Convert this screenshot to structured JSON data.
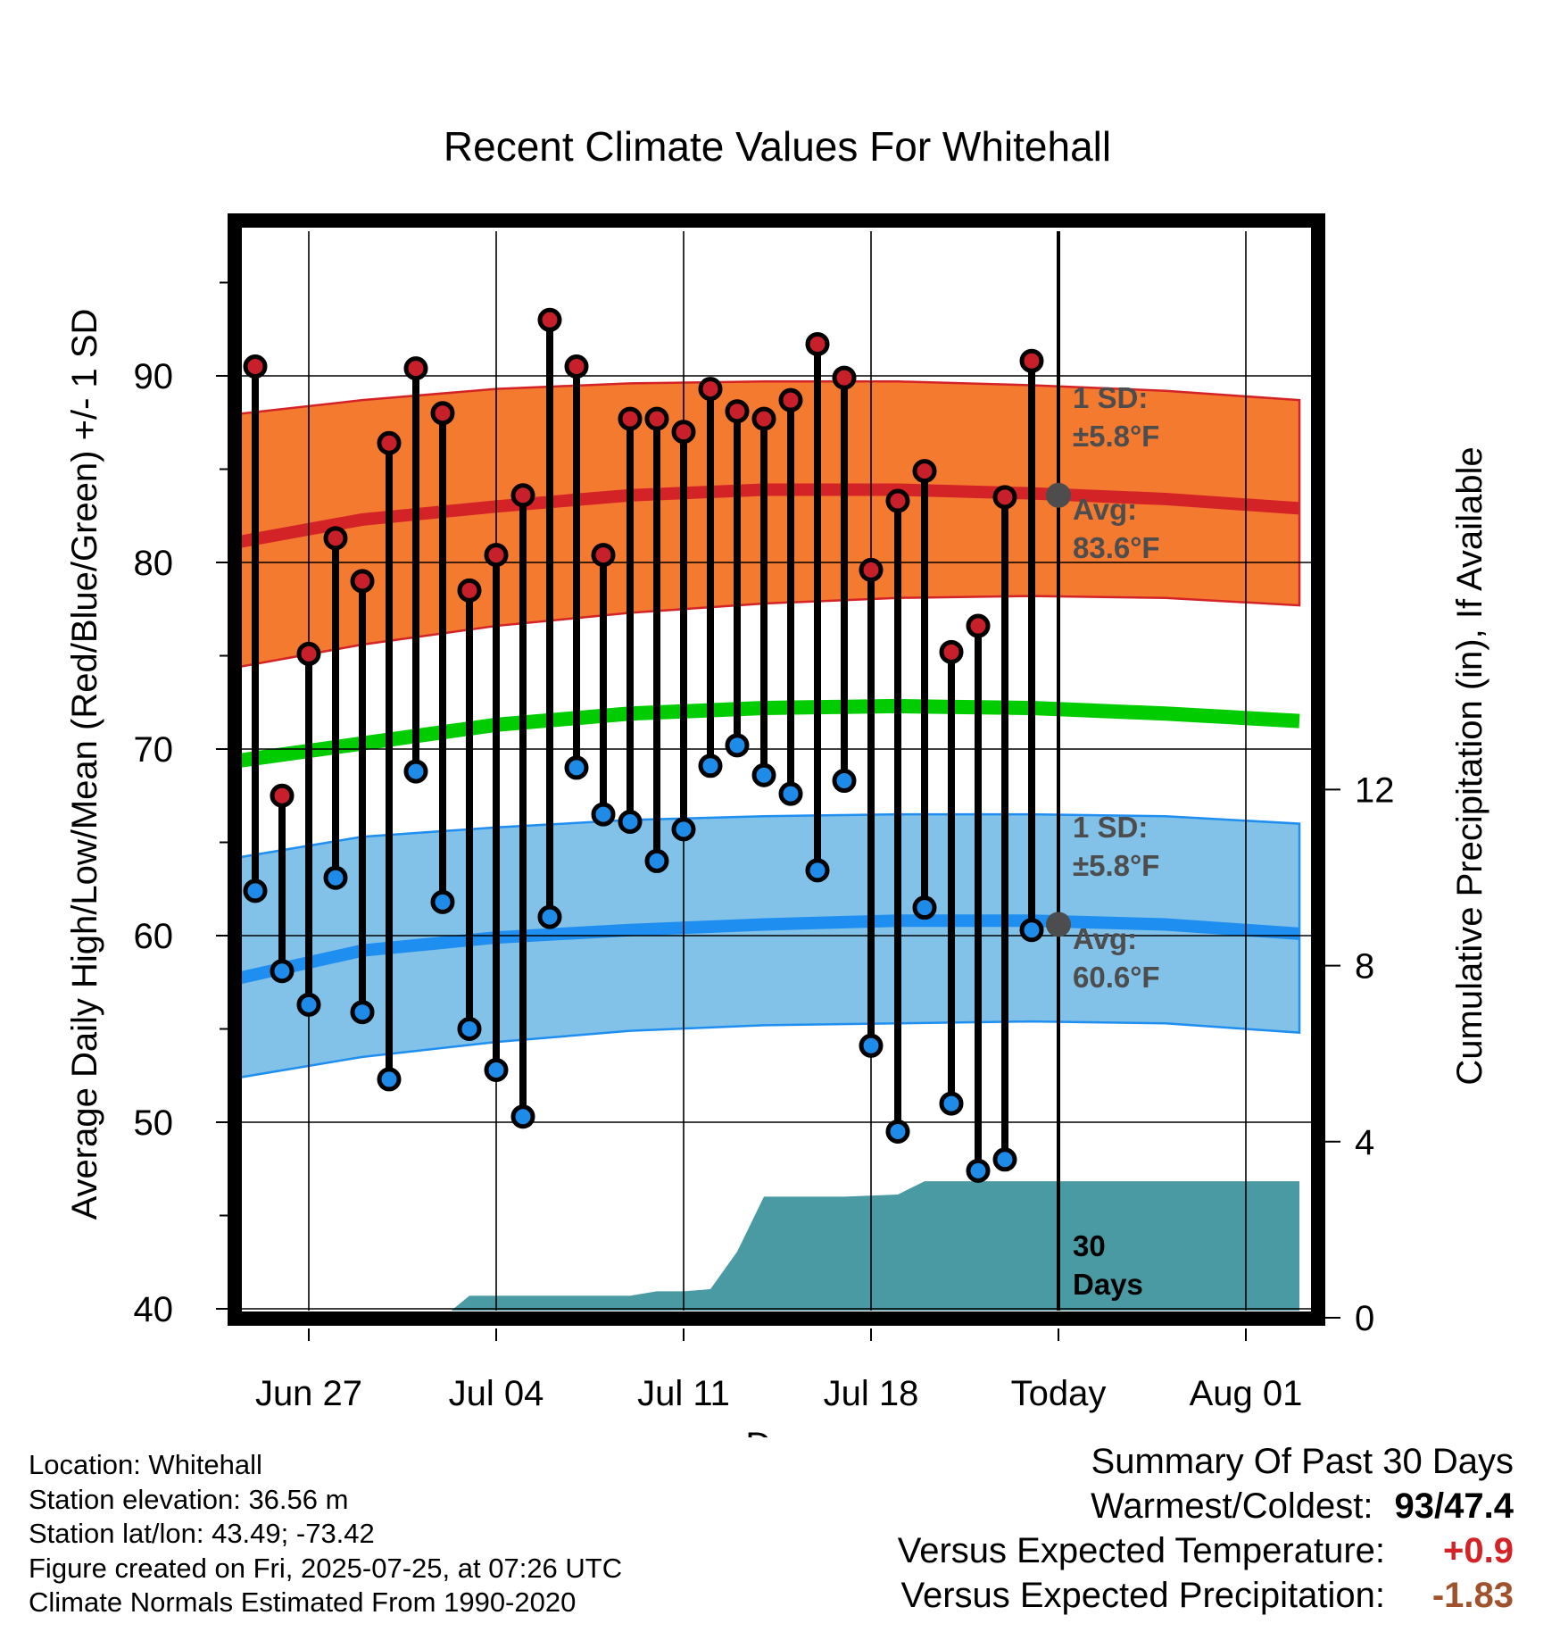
{
  "chart_data": {
    "type": "line",
    "title": "Recent Climate Values For Whitehall",
    "xlabel": "Day",
    "ylabel": "Average Daily High/Low/Mean (Red/Blue/Green) +/- 1 SD",
    "y2label": "Cumulative Precipitation (in), If Available",
    "ylim": [
      40,
      97
    ],
    "y2lim": [
      0,
      19.5
    ],
    "yticks": [
      40,
      50,
      60,
      70,
      80,
      90
    ],
    "y2ticks": [
      0,
      4,
      8,
      12
    ],
    "x_range": [
      "2025-06-24",
      "2025-08-03"
    ],
    "xticks": [
      {
        "date": "2025-06-27",
        "label": "Jun 27"
      },
      {
        "date": "2025-07-04",
        "label": "Jul 04"
      },
      {
        "date": "2025-07-11",
        "label": "Jul 11"
      },
      {
        "date": "2025-07-18",
        "label": "Jul 18"
      },
      {
        "date": "2025-07-25",
        "label": "Today"
      },
      {
        "date": "2025-08-01",
        "label": "Aug 01"
      }
    ],
    "today": "2025-07-25",
    "grid": true,
    "colors": {
      "high_band": "#f47a30",
      "high_line": "#d42326",
      "low_band": "#82c1e8",
      "low_line": "#1e8ff0",
      "mean_line": "#00cc00",
      "precip": "#4a9aa4",
      "dot_high": "#c8202a",
      "dot_low": "#1f8be8",
      "annotation": "#4d4d4d"
    },
    "normals": {
      "dates": [
        "2025-06-24",
        "2025-06-29",
        "2025-07-04",
        "2025-07-09",
        "2025-07-14",
        "2025-07-19",
        "2025-07-24",
        "2025-07-29",
        "2025-08-03"
      ],
      "high_avg": [
        81.0,
        82.3,
        83.0,
        83.6,
        83.9,
        83.9,
        83.7,
        83.4,
        82.9
      ],
      "high_sd_upper": [
        87.9,
        88.7,
        89.3,
        89.6,
        89.7,
        89.7,
        89.5,
        89.2,
        88.7
      ],
      "high_sd_lower": [
        74.3,
        75.6,
        76.6,
        77.3,
        77.8,
        78.1,
        78.2,
        78.1,
        77.7
      ],
      "mean": [
        69.3,
        70.3,
        71.3,
        71.9,
        72.2,
        72.3,
        72.2,
        71.9,
        71.5
      ],
      "low_avg": [
        57.6,
        59.2,
        59.9,
        60.3,
        60.6,
        60.8,
        60.8,
        60.6,
        60.1
      ],
      "low_sd_upper": [
        64.1,
        65.3,
        65.8,
        66.2,
        66.4,
        66.5,
        66.5,
        66.4,
        66.0
      ],
      "low_sd_lower": [
        52.3,
        53.5,
        54.3,
        54.9,
        55.2,
        55.3,
        55.4,
        55.3,
        54.8
      ]
    },
    "daily": {
      "dates": [
        "2025-06-25",
        "2025-06-26",
        "2025-06-27",
        "2025-06-28",
        "2025-06-29",
        "2025-06-30",
        "2025-07-01",
        "2025-07-02",
        "2025-07-03",
        "2025-07-04",
        "2025-07-05",
        "2025-07-06",
        "2025-07-07",
        "2025-07-08",
        "2025-07-09",
        "2025-07-10",
        "2025-07-11",
        "2025-07-12",
        "2025-07-13",
        "2025-07-14",
        "2025-07-15",
        "2025-07-16",
        "2025-07-17",
        "2025-07-18",
        "2025-07-19",
        "2025-07-20",
        "2025-07-21",
        "2025-07-22",
        "2025-07-23",
        "2025-07-24"
      ],
      "high": [
        90.5,
        67.5,
        75.1,
        81.3,
        79.0,
        86.4,
        90.4,
        88.0,
        78.5,
        80.4,
        83.6,
        93.0,
        90.5,
        80.4,
        87.7,
        87.7,
        87.0,
        89.3,
        88.1,
        87.7,
        88.7,
        91.7,
        89.9,
        79.6,
        83.3,
        84.9,
        75.2,
        76.6,
        83.5,
        90.8
      ],
      "low": [
        62.4,
        58.1,
        56.3,
        63.1,
        55.9,
        52.3,
        68.8,
        61.8,
        55.0,
        52.8,
        50.3,
        61.0,
        69.0,
        66.5,
        66.1,
        64.0,
        65.7,
        69.1,
        70.2,
        68.6,
        67.6,
        63.5,
        68.3,
        54.1,
        49.5,
        61.5,
        51.0,
        47.4,
        48.0,
        60.3
      ]
    },
    "precip": {
      "dates": [
        "2025-06-24",
        "2025-07-02",
        "2025-07-03",
        "2025-07-04",
        "2025-07-09",
        "2025-07-10",
        "2025-07-11",
        "2025-07-12",
        "2025-07-13",
        "2025-07-14",
        "2025-07-17",
        "2025-07-19",
        "2025-07-20",
        "2025-08-03"
      ],
      "values": [
        0,
        0,
        0.5,
        0.5,
        0.5,
        0.6,
        0.6,
        0.65,
        1.5,
        2.75,
        2.75,
        2.8,
        3.1,
        3.1
      ]
    },
    "annotations": {
      "high_sd_label": "1 SD:",
      "high_sd_value": "±5.8°F",
      "high_avg_label": "Avg:",
      "high_avg_value": "83.6°F",
      "low_sd_label": "1 SD:",
      "low_sd_value": "±5.8°F",
      "low_avg_label": "Avg:",
      "low_avg_value": "60.6°F",
      "days_line1": "30",
      "days_line2": "Days"
    }
  },
  "info": {
    "location": "Location: Whitehall",
    "elevation": "Station elevation: 36.56 m",
    "latlon": "Station lat/lon: 43.49; -73.42",
    "created": "Figure created on Fri, 2025-07-25, at 07:26 UTC",
    "normals": "Climate Normals Estimated From 1990-2020"
  },
  "summary": {
    "heading": "Summary Of Past 30 Days",
    "warmest_label": "Warmest/Coldest:",
    "warmest_value": "93/47.4",
    "temp_label": "Versus Expected Temperature:",
    "temp_value": "+0.9",
    "temp_color": "#d42326",
    "precip_label": "Versus Expected Precipitation:",
    "precip_value": "-1.83",
    "precip_color": "#a0522d"
  }
}
